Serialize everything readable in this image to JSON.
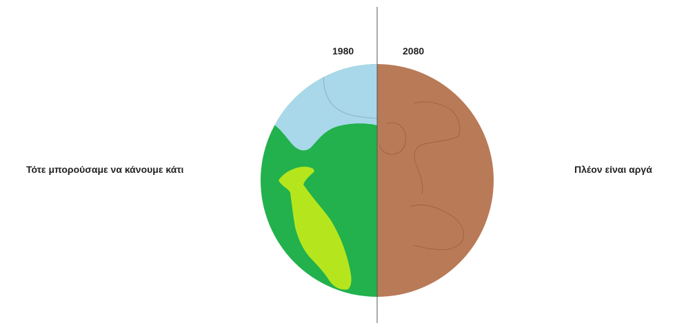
{
  "captions": {
    "before": "Τότε μπορούσαμε να κάνουμε κάτι",
    "after": "Πλέον είναι αργά"
  },
  "years": {
    "before": "1980",
    "after": "2080"
  },
  "colors": {
    "ice": "#a8d8ea",
    "land_green": "#22b14c",
    "land_yellow": "#b5e61d",
    "desert": "#b97a57",
    "divider": "#555555",
    "text": "#222222"
  }
}
